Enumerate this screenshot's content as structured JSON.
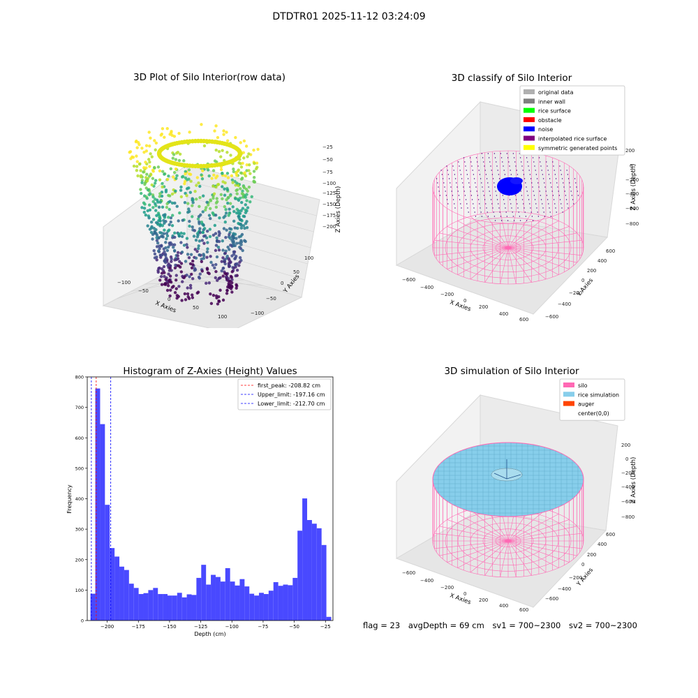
{
  "figure": {
    "suptitle": "DTDTR01 2025-11-12 03:24:09"
  },
  "status": {
    "flag": "flag = 23",
    "avg_depth": "avgDepth = 69 cm",
    "sv1": "sv1 = 700~2300",
    "sv2": "sv2 = 700~2300"
  },
  "colors": {
    "histogram_bar": "#4949ff",
    "silo_wire": "#ff69b4",
    "rice_surface": "#87ceeb",
    "noise": "#0000ff",
    "first_peak_line": "#ff0000",
    "limit_lines": "#0000ff"
  },
  "chart_data": [
    {
      "type": "scatter",
      "title": "3D Plot of Silo Interior(row data)",
      "xlabel": "X Axies",
      "ylabel": "Y Axies",
      "zlabel": "Z Axies (Depth)",
      "xticks": [
        "−100",
        "−50",
        "0",
        "50",
        "100"
      ],
      "yticks": [
        "−100",
        "−50",
        "0",
        "50",
        "100"
      ],
      "zticks": [
        "−25",
        "−50",
        "−75",
        "−100",
        "−125",
        "−150",
        "−175",
        "−200"
      ],
      "colormap": "viridis"
    },
    {
      "type": "scatter",
      "title": "3D classify of Silo Interior",
      "xlabel": "X Axies",
      "ylabel": "Y Axies",
      "zlabel": "Z Axies (Depth)",
      "xticks": [
        "−600",
        "−400",
        "−200",
        "0",
        "200",
        "400",
        "600"
      ],
      "yticks": [
        "−600",
        "−400",
        "−200",
        "0",
        "200",
        "400",
        "600"
      ],
      "zticks": [
        "200",
        "0",
        "−200",
        "−400",
        "−600",
        "−800"
      ],
      "legend": [
        {
          "label": "original data",
          "color": "#b0b0b0"
        },
        {
          "label": "inner wall",
          "color": "#808080"
        },
        {
          "label": "rice surface",
          "color": "#00ff00"
        },
        {
          "label": "obstacle",
          "color": "#ff0000"
        },
        {
          "label": "noise",
          "color": "#0000ff"
        },
        {
          "label": "interpolated rice surface",
          "color": "#800080"
        },
        {
          "label": "symmetric generated points",
          "color": "#ffff00"
        }
      ],
      "legend_position": "top-right"
    },
    {
      "type": "bar",
      "title": "Histogram of Z-Axies (Height) Values",
      "xlabel": "Depth (cm)",
      "ylabel": "Frequency",
      "xlim": [
        -216,
        -19
      ],
      "ylim": [
        0,
        800
      ],
      "xticks": [
        -200,
        -175,
        -150,
        -125,
        -100,
        -75,
        -50,
        -25
      ],
      "xtick_labels": [
        "−200",
        "−175",
        "−150",
        "−125",
        "−100",
        "−75",
        "−50",
        "−25"
      ],
      "yticks": [
        0,
        100,
        200,
        300,
        400,
        500,
        600,
        700,
        800
      ],
      "bin_start": -213.4,
      "bin_width": 3.86,
      "values": [
        88,
        762,
        645,
        380,
        238,
        210,
        177,
        166,
        121,
        107,
        87,
        90,
        100,
        107,
        87,
        87,
        82,
        82,
        91,
        76,
        86,
        84,
        140,
        183,
        118,
        150,
        143,
        128,
        172,
        128,
        115,
        136,
        112,
        88,
        82,
        91,
        87,
        98,
        126,
        114,
        118,
        116,
        140,
        295,
        401,
        330,
        318,
        303,
        248,
        12
      ],
      "lines": [
        {
          "label": "first_peak: -208.82 cm",
          "x": -208.82,
          "color": "#ff0000"
        },
        {
          "label": "Upper_limit: -197.16 cm",
          "x": -197.16,
          "color": "#0000ff"
        },
        {
          "label": "Lower_limit: -212.70 cm",
          "x": -212.7,
          "color": "#0000ff"
        }
      ],
      "legend_position": "top-right"
    },
    {
      "type": "scatter",
      "title": "3D simulation of Silo Interior",
      "xlabel": "X Axies",
      "ylabel": "Y Axies",
      "zlabel": "Z Axies (Depth)",
      "xticks": [
        "−600",
        "−400",
        "−200",
        "0",
        "200",
        "400",
        "600"
      ],
      "yticks": [
        "−600",
        "−400",
        "−200",
        "0",
        "200",
        "400",
        "600"
      ],
      "zticks": [
        "200",
        "0",
        "−200",
        "−400",
        "−600",
        "−800"
      ],
      "legend": [
        {
          "label": "silo",
          "color": "#ff69b4"
        },
        {
          "label": "rice simulation",
          "color": "#87ceeb"
        },
        {
          "label": "auger",
          "color": "#ff4500"
        },
        {
          "label": "center(0,0)",
          "color": ""
        }
      ],
      "legend_position": "top-right"
    }
  ]
}
